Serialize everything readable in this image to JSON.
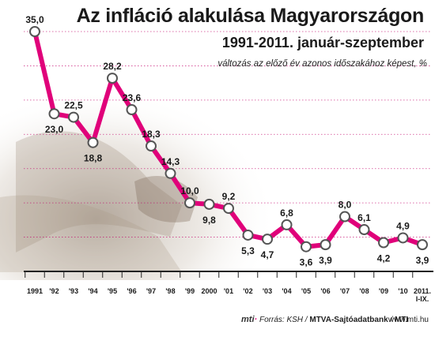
{
  "header": {
    "title": "Az infláció alakulása Magyarországon",
    "subtitle": "1991-2011. január-szeptember",
    "note": "változás az előző év azonos időszakához képest, %"
  },
  "footer": {
    "logo": "mti",
    "source_prefix": "Forrás: KSH /",
    "source_bold": "MTVA-Sajtóadatbank",
    "source_sep": "/",
    "source_agency": "MTI",
    "site": "www.mti.hu"
  },
  "colors": {
    "line": "#e0007a",
    "marker_fill": "#ffffff",
    "marker_stroke": "#555555",
    "gridline": "#c2006a",
    "text": "#1a1a1a"
  },
  "chart_data": {
    "type": "line",
    "title": "Az infláció alakulása Magyarországon",
    "subtitle": "1991-2011. január-szeptember",
    "ylabel": "változás az előző év azonos időszakához képest, %",
    "categories": [
      "1991",
      "'92",
      "'93",
      "'94",
      "'95",
      "'96",
      "'97",
      "'98",
      "'99",
      "2000",
      "'01",
      "'02",
      "'03",
      "'04",
      "'05",
      "'06",
      "'07",
      "'08",
      "'09",
      "'10",
      "2011.\nI-IX."
    ],
    "values": [
      35.0,
      23.0,
      22.5,
      18.8,
      28.2,
      23.6,
      18.3,
      14.3,
      10.0,
      9.8,
      9.2,
      5.3,
      4.7,
      6.8,
      3.6,
      3.9,
      8.0,
      6.1,
      4.2,
      4.9,
      3.9
    ],
    "labels": [
      "35,0",
      "23,0",
      "22,5",
      "18,8",
      "28,2",
      "23,6",
      "18,3",
      "14,3",
      "10,0",
      "9,8",
      "9,2",
      "5,3",
      "4,7",
      "6,8",
      "3,6",
      "3,9",
      "8,0",
      "6,1",
      "4,2",
      "4,9",
      "3,9"
    ],
    "label_side": [
      "above",
      "below",
      "above",
      "below",
      "above",
      "above",
      "above",
      "above",
      "above",
      "below",
      "above",
      "below",
      "below",
      "above",
      "below",
      "below",
      "above",
      "above",
      "below",
      "above",
      "below"
    ],
    "ylim": [
      0,
      35
    ],
    "grid": true
  }
}
